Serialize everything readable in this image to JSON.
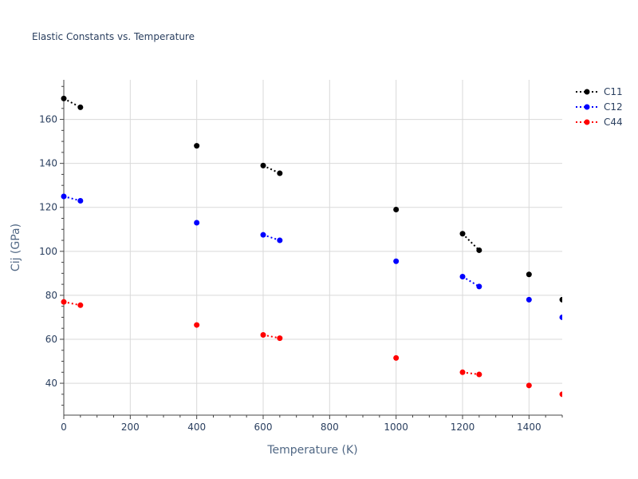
{
  "chart_data": {
    "type": "line",
    "title": "Elastic Constants vs. Temperature",
    "xlabel": "Temperature (K)",
    "ylabel": "Cij (GPa)",
    "xlim": [
      0,
      1500
    ],
    "ylim": [
      25.5,
      178
    ],
    "xticks": [
      0,
      200,
      400,
      600,
      800,
      1000,
      1200,
      1400
    ],
    "yticks": [
      40,
      60,
      80,
      100,
      120,
      140,
      160
    ],
    "grid": true,
    "legend_position": "top-right",
    "line_style": "dotted",
    "segments": [
      [
        0,
        50
      ],
      [
        600,
        650
      ],
      [
        1200,
        1250
      ]
    ],
    "x": [
      0,
      50,
      400,
      600,
      650,
      1000,
      1200,
      1250,
      1400,
      1500
    ],
    "series": [
      {
        "name": "C11",
        "color": "#000000",
        "values": [
          169.5,
          165.5,
          148,
          139,
          135.5,
          119,
          108,
          100.5,
          89.5,
          78
        ]
      },
      {
        "name": "C12",
        "color": "#0000ff",
        "values": [
          125,
          123,
          113,
          107.5,
          105,
          95.5,
          88.5,
          84,
          78,
          70
        ]
      },
      {
        "name": "C44",
        "color": "#ff0000",
        "values": [
          77,
          75.5,
          66.5,
          62,
          60.5,
          51.5,
          45,
          44,
          39,
          35
        ]
      }
    ]
  }
}
